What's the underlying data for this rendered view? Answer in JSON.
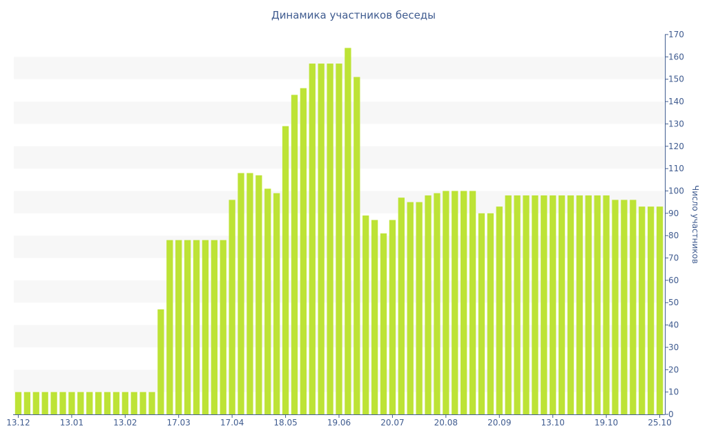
{
  "chart_data": {
    "type": "bar",
    "title": "Динамика участников беседы",
    "ylabel": "Число участников",
    "xlabel": "",
    "y_axis_side": "right",
    "ylim": [
      0,
      170
    ],
    "y_ticks": [
      0,
      10,
      20,
      30,
      40,
      50,
      60,
      70,
      80,
      90,
      100,
      110,
      120,
      130,
      140,
      150,
      160,
      170
    ],
    "x_tick_labels": [
      {
        "index": 0,
        "label": "13.12"
      },
      {
        "index": 6,
        "label": "13.01"
      },
      {
        "index": 12,
        "label": "13.02"
      },
      {
        "index": 18,
        "label": "17.03"
      },
      {
        "index": 24,
        "label": "17.04"
      },
      {
        "index": 30,
        "label": "18.05"
      },
      {
        "index": 36,
        "label": "19.06"
      },
      {
        "index": 42,
        "label": "20.07"
      },
      {
        "index": 48,
        "label": "20.08"
      },
      {
        "index": 54,
        "label": "20.09"
      },
      {
        "index": 60,
        "label": "13.10"
      },
      {
        "index": 66,
        "label": "19.10"
      },
      {
        "index": 72,
        "label": "25.10"
      }
    ],
    "bar_color": "#bde336",
    "band_color": "#f7f7f7",
    "values": [
      10,
      10,
      10,
      10,
      10,
      10,
      10,
      10,
      10,
      10,
      10,
      10,
      10,
      10,
      10,
      10,
      47,
      78,
      78,
      78,
      78,
      78,
      78,
      78,
      96,
      108,
      108,
      107,
      101,
      99,
      129,
      143,
      146,
      157,
      157,
      157,
      157,
      164,
      151,
      89,
      87,
      81,
      87,
      97,
      95,
      95,
      98,
      99,
      100,
      100,
      100,
      100,
      90,
      90,
      93,
      98,
      98,
      98,
      98,
      98,
      98,
      98,
      98,
      98,
      98,
      98,
      98,
      96,
      96,
      96,
      93,
      93,
      93
    ]
  }
}
